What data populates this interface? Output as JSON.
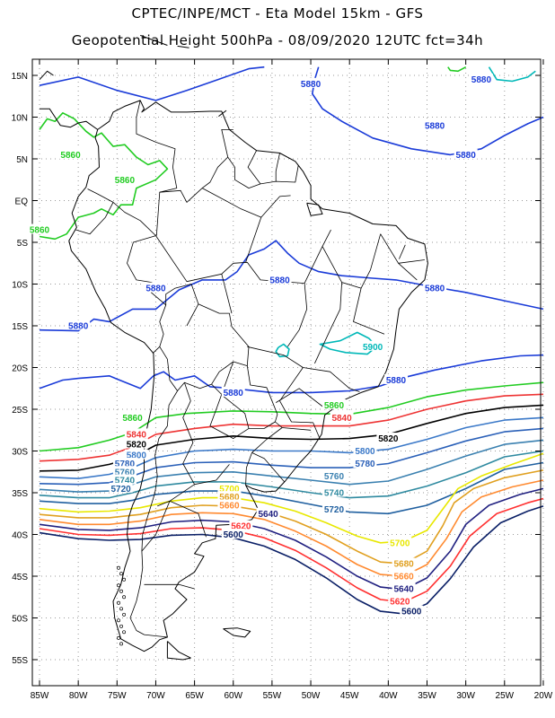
{
  "title": {
    "line1": "CPTEC/INPE/MCT  -   Eta Model 15km  -  GFS",
    "line2": "Geopotential Height 500hPa  -  08/09/2020 12UTC fct=34h"
  },
  "axes": {
    "lat_labels": [
      "15N",
      "10N",
      "5N",
      "EQ",
      "5S",
      "10S",
      "15S",
      "20S",
      "25S",
      "30S",
      "35S",
      "40S",
      "45S",
      "50S",
      "55S"
    ],
    "lon_labels": [
      "85W",
      "80W",
      "75W",
      "70W",
      "65W",
      "60W",
      "55W",
      "50W",
      "45W",
      "40W",
      "35W",
      "30W",
      "25W",
      "20W"
    ]
  },
  "map_colors": {
    "grid": "#9a9a9a",
    "coast": "#000000",
    "border": "#000000",
    "c5880": "#1a3bd8",
    "c5900": "#00b8b8",
    "c5860": "#22cc22",
    "c5840": "#ee3333",
    "c5820": "#000000",
    "c5800": "#3a78c8",
    "c5780": "#2a60b8",
    "c5760": "#3a80b0",
    "c5740": "#2f8aa0",
    "c5720": "#2060a0",
    "c5700": "#e8e800",
    "c5680": "#e0a020",
    "c5660": "#ff8a30",
    "c5640": "#202080",
    "c5620": "#ff3030",
    "c5600": "#0a1f66"
  },
  "contour_labels": [
    {
      "text": "5880",
      "lon": -50,
      "lat": 14
    },
    {
      "text": "5880",
      "lon": -28,
      "lat": 14.5
    },
    {
      "text": "5880",
      "lon": -34,
      "lat": 9
    },
    {
      "text": "5880",
      "lon": -30,
      "lat": 5.5
    },
    {
      "text": "5880",
      "lon": -54,
      "lat": -9.5
    },
    {
      "text": "5880",
      "lon": -70,
      "lat": -10.5
    },
    {
      "text": "5880",
      "lon": -80,
      "lat": -15
    },
    {
      "text": "5880",
      "lon": -34,
      "lat": -10.5
    },
    {
      "text": "5880",
      "lon": -60,
      "lat": -23
    },
    {
      "text": "5880",
      "lon": -39,
      "lat": -21.5
    },
    {
      "text": "5900",
      "lon": -42,
      "lat": -17.5
    },
    {
      "text": "5860",
      "lon": -81,
      "lat": 5.5
    },
    {
      "text": "5860",
      "lon": -74,
      "lat": 2.5
    },
    {
      "text": "5860",
      "lon": -85,
      "lat": -3.5
    },
    {
      "text": "5860",
      "lon": -73,
      "lat": -26
    },
    {
      "text": "5860",
      "lon": -47,
      "lat": -24.5
    },
    {
      "text": "5840",
      "lon": -72.5,
      "lat": -28
    },
    {
      "text": "5840",
      "lon": -46,
      "lat": -26
    },
    {
      "text": "5820",
      "lon": -72.5,
      "lat": -29.2
    },
    {
      "text": "5820",
      "lon": -40,
      "lat": -28.5
    },
    {
      "text": "5800",
      "lon": -72.5,
      "lat": -30.5
    },
    {
      "text": "5800",
      "lon": -43,
      "lat": -30
    },
    {
      "text": "5780",
      "lon": -74,
      "lat": -31.5
    },
    {
      "text": "5780",
      "lon": -43,
      "lat": -31.5
    },
    {
      "text": "5760",
      "lon": -74,
      "lat": -32.5
    },
    {
      "text": "5760",
      "lon": -47,
      "lat": -33
    },
    {
      "text": "5740",
      "lon": -74,
      "lat": -33.5
    },
    {
      "text": "5740",
      "lon": -47,
      "lat": -35
    },
    {
      "text": "5720",
      "lon": -74.5,
      "lat": -34.5
    },
    {
      "text": "5720",
      "lon": -47,
      "lat": -37
    },
    {
      "text": "5700",
      "lon": -60.5,
      "lat": -34.5
    },
    {
      "text": "5700",
      "lon": -38.5,
      "lat": -41
    },
    {
      "text": "5680",
      "lon": -60.5,
      "lat": -35.5
    },
    {
      "text": "5680",
      "lon": -38,
      "lat": -43.5
    },
    {
      "text": "5660",
      "lon": -60.5,
      "lat": -36.5
    },
    {
      "text": "5660",
      "lon": -38,
      "lat": -45
    },
    {
      "text": "5640",
      "lon": -55.5,
      "lat": -37.5
    },
    {
      "text": "5640",
      "lon": -38,
      "lat": -46.5
    },
    {
      "text": "5620",
      "lon": -59,
      "lat": -39
    },
    {
      "text": "5620",
      "lon": -38.5,
      "lat": -48
    },
    {
      "text": "5600",
      "lon": -60,
      "lat": -40
    },
    {
      "text": "5600",
      "lon": -37,
      "lat": -49.2
    }
  ]
}
